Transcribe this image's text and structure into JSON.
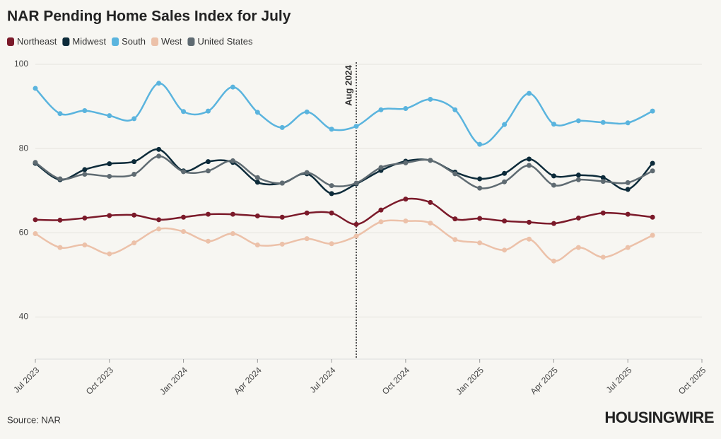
{
  "chart_data": {
    "type": "line",
    "title": "NAR Pending Home Sales Index for July",
    "source": "Source: NAR",
    "logo": "HOUSINGWIRE",
    "x": [
      "2023-07",
      "2023-08",
      "2023-09",
      "2023-10",
      "2023-11",
      "2023-12",
      "2024-01",
      "2024-02",
      "2024-03",
      "2024-04",
      "2024-05",
      "2024-06",
      "2024-07",
      "2024-08",
      "2024-09",
      "2024-10",
      "2024-11",
      "2024-12",
      "2025-01",
      "2025-02",
      "2025-03",
      "2025-04",
      "2025-05",
      "2025-06",
      "2025-07",
      "2025-08"
    ],
    "series": [
      {
        "name": "Northeast",
        "color": "#7b1a2a",
        "values": [
          63.1,
          63,
          63.5,
          64.1,
          64.2,
          63.1,
          63.7,
          64.4,
          64.4,
          64,
          63.7,
          64.7,
          64.7,
          62,
          65.4,
          68,
          67.2,
          63.3,
          63.4,
          62.8,
          62.5,
          62.2,
          63.5,
          64.7,
          64.4,
          63.7
        ]
      },
      {
        "name": "Midwest",
        "color": "#0d2b3a",
        "values": [
          76.5,
          72.6,
          75,
          76.4,
          76.9,
          79.8,
          74.7,
          76.9,
          76.7,
          72,
          71.8,
          74,
          69.3,
          71.6,
          74.8,
          77,
          77.2,
          74.4,
          72.8,
          74.1,
          77.5,
          73.5,
          73.7,
          73.1,
          70.3,
          76.5
        ]
      },
      {
        "name": "South",
        "color": "#5ab4de",
        "values": [
          94.3,
          88.3,
          89,
          87.8,
          87.1,
          95.5,
          88.8,
          88.9,
          94.6,
          88.6,
          85,
          88.7,
          84.6,
          85.3,
          89.2,
          89.5,
          91.7,
          89.2,
          81,
          85.7,
          93.1,
          85.8,
          86.6,
          86.2,
          86.1,
          88.9
        ]
      },
      {
        "name": "West",
        "color": "#ecc1a9",
        "values": [
          59.8,
          56.5,
          57.1,
          55,
          57.6,
          60.9,
          60.3,
          58,
          59.8,
          57.1,
          57.3,
          58.6,
          57.4,
          59.2,
          62.6,
          62.8,
          62.3,
          58.4,
          57.6,
          55.9,
          58.5,
          53.3,
          56.5,
          54.2,
          56.5,
          59.4
        ]
      },
      {
        "name": "United States",
        "color": "#5f6b72",
        "values": [
          76.7,
          72.8,
          73.9,
          73.4,
          73.9,
          78.2,
          74.5,
          74.7,
          77.1,
          73.1,
          71.8,
          74.3,
          71.2,
          71.8,
          75.5,
          76.6,
          77.2,
          74,
          70.6,
          72.1,
          76,
          71.3,
          72.6,
          72.2,
          71.9,
          74.7
        ]
      }
    ],
    "annotation": {
      "x": "2024-08",
      "label": "Aug 2024"
    },
    "xlim": [
      "2023-07",
      "2025-10"
    ],
    "xticks": [
      {
        "value": "2023-07",
        "label": "Jul 2023"
      },
      {
        "value": "2023-10",
        "label": "Oct 2023"
      },
      {
        "value": "2024-01",
        "label": "Jan 2024"
      },
      {
        "value": "2024-04",
        "label": "Apr 2024"
      },
      {
        "value": "2024-07",
        "label": "Jul 2024"
      },
      {
        "value": "2024-10",
        "label": "Oct 2024"
      },
      {
        "value": "2025-01",
        "label": "Jan 2025"
      },
      {
        "value": "2025-04",
        "label": "Apr 2025"
      },
      {
        "value": "2025-07",
        "label": "Jul 2025"
      },
      {
        "value": "2025-10",
        "label": "Oct 2025"
      }
    ],
    "ylim": [
      30,
      100
    ],
    "yticks": [
      40,
      60,
      80,
      100
    ],
    "grid": true
  }
}
